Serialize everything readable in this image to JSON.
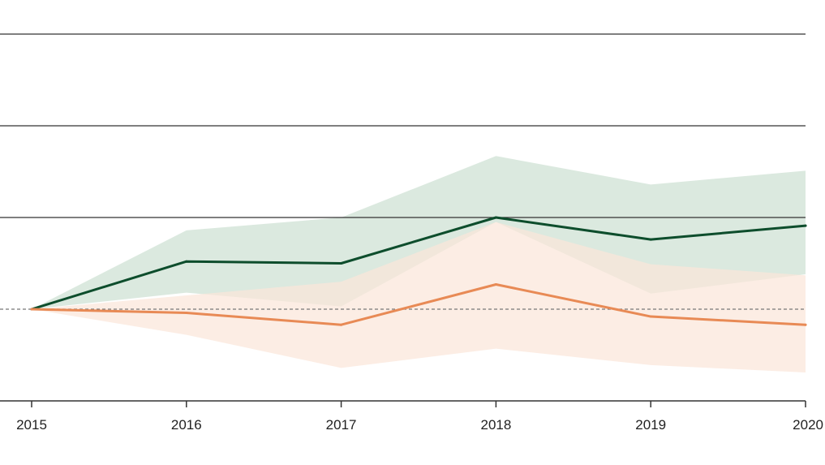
{
  "chart_data": {
    "type": "line",
    "title": "",
    "xlabel": "",
    "ylabel": "",
    "x": [
      "2015",
      "2016",
      "2017",
      "2018",
      "2019",
      "2020"
    ],
    "ylim": [
      -1,
      3
    ],
    "y_gridlines": [
      1,
      2,
      3
    ],
    "baseline": 0,
    "grid": true,
    "legend": "none",
    "series": [
      {
        "color": "#0d4d2c",
        "band_color": "#dbe9df",
        "values": [
          0,
          0.52,
          0.5,
          1.0,
          0.76,
          0.91
        ],
        "lower": [
          0,
          0.18,
          0.03,
          0.95,
          0.17,
          0.38
        ],
        "upper": [
          0,
          0.86,
          1.0,
          1.67,
          1.36,
          1.51
        ]
      },
      {
        "color": "#e88a55",
        "band_color": "#fbe6da",
        "values": [
          0,
          -0.04,
          -0.17,
          0.27,
          -0.08,
          -0.17
        ],
        "lower": [
          0,
          -0.28,
          -0.64,
          -0.43,
          -0.61,
          -0.69
        ],
        "upper": [
          0,
          0.15,
          0.3,
          0.95,
          0.49,
          0.37
        ]
      }
    ]
  }
}
